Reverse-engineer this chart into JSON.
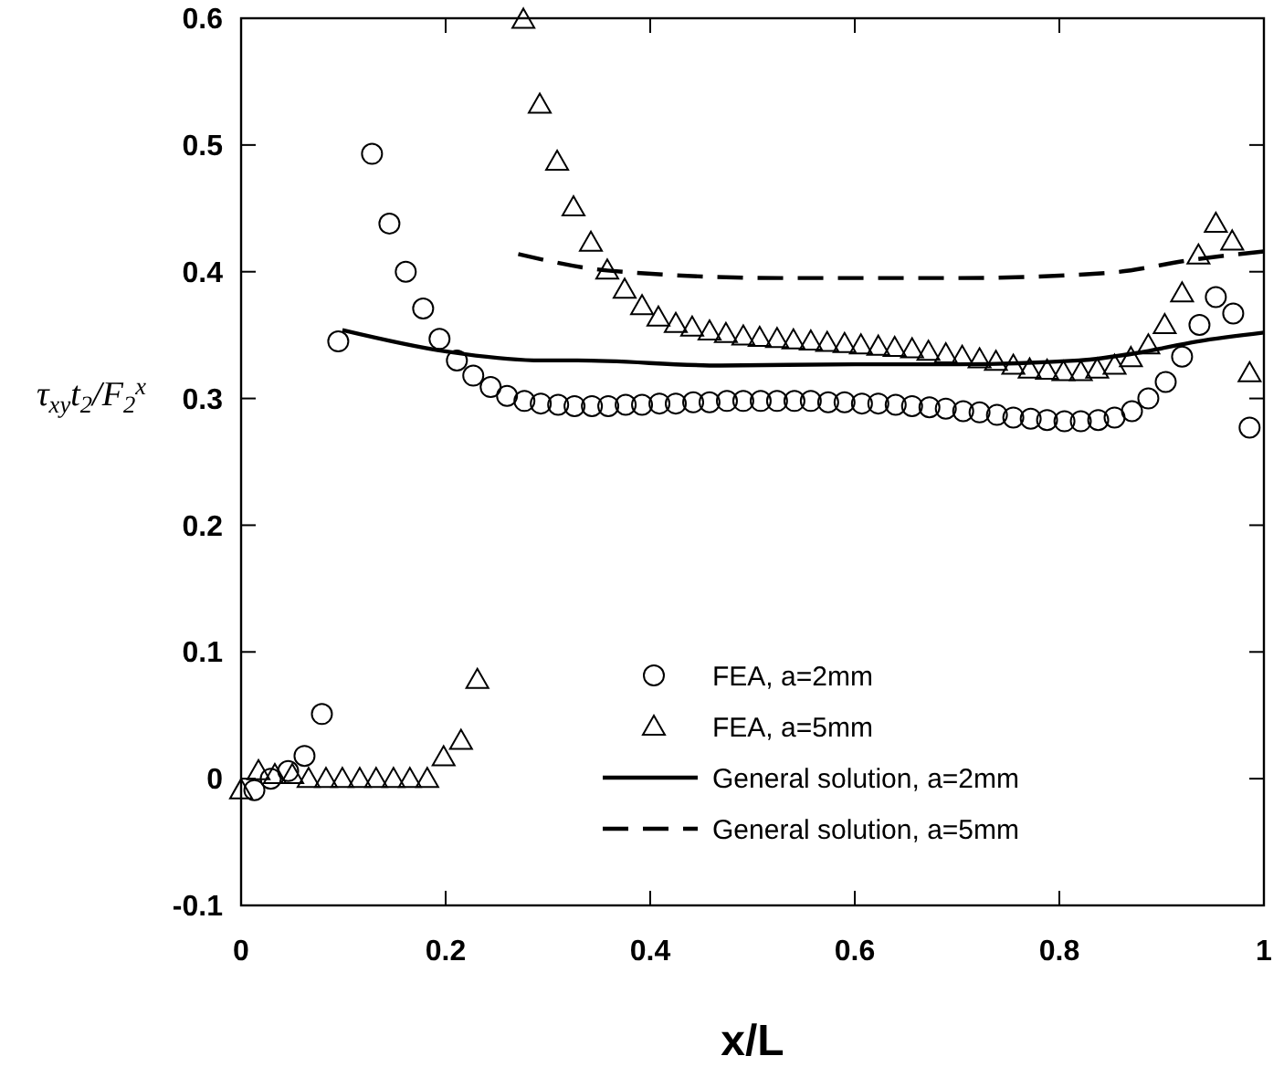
{
  "chart_data": {
    "type": "scatter",
    "xlabel": "x/L",
    "ylabel": "τ$_{xy}$t$_{2}$/F$_{2}$$^{x}$",
    "xlim": [
      0,
      1
    ],
    "xticks": [
      0,
      0.2,
      0.4,
      0.6,
      0.8,
      1
    ],
    "ylim": [
      -0.1,
      0.6
    ],
    "yticks": [
      -0.1,
      0,
      0.1,
      0.2,
      0.3,
      0.4,
      0.5,
      0.6
    ],
    "grid": false,
    "legend": "bottom right",
    "series": [
      {
        "name": "FEA, a=2mm",
        "marker": "circle",
        "color": "#000000",
        "x": [
          0.013,
          0.029,
          0.046,
          0.062,
          0.079,
          0.095,
          0.128,
          0.145,
          0.161,
          0.178,
          0.194,
          0.211,
          0.227,
          0.244,
          0.26,
          0.277,
          0.293,
          0.31,
          0.326,
          0.343,
          0.359,
          0.376,
          0.392,
          0.409,
          0.425,
          0.442,
          0.458,
          0.475,
          0.491,
          0.508,
          0.524,
          0.541,
          0.557,
          0.574,
          0.59,
          0.607,
          0.623,
          0.64,
          0.656,
          0.673,
          0.689,
          0.706,
          0.722,
          0.739,
          0.755,
          0.772,
          0.788,
          0.805,
          0.821,
          0.838,
          0.854,
          0.871,
          0.887,
          0.904,
          0.92,
          0.937,
          0.953,
          0.97,
          0.986
        ],
        "values": [
          -0.009,
          0.0,
          0.006,
          0.018,
          0.051,
          0.345,
          0.493,
          0.438,
          0.4,
          0.371,
          0.347,
          0.33,
          0.318,
          0.309,
          0.302,
          0.298,
          0.296,
          0.295,
          0.294,
          0.294,
          0.294,
          0.295,
          0.295,
          0.296,
          0.296,
          0.297,
          0.297,
          0.298,
          0.298,
          0.298,
          0.298,
          0.298,
          0.298,
          0.297,
          0.297,
          0.296,
          0.296,
          0.295,
          0.294,
          0.293,
          0.292,
          0.29,
          0.289,
          0.287,
          0.285,
          0.284,
          0.283,
          0.282,
          0.282,
          0.283,
          0.285,
          0.29,
          0.3,
          0.313,
          0.333,
          0.358,
          0.38,
          0.367,
          0.277
        ]
      },
      {
        "name": "FEA, a=5mm",
        "marker": "triangle",
        "color": "#000000",
        "x": [
          0,
          0.017,
          0.033,
          0.05,
          0.066,
          0.083,
          0.099,
          0.116,
          0.132,
          0.149,
          0.165,
          0.182,
          0.198,
          0.215,
          0.231,
          0.276,
          0.292,
          0.309,
          0.325,
          0.342,
          0.358,
          0.375,
          0.392,
          0.408,
          0.425,
          0.441,
          0.458,
          0.474,
          0.491,
          0.507,
          0.524,
          0.54,
          0.557,
          0.573,
          0.59,
          0.606,
          0.623,
          0.639,
          0.656,
          0.672,
          0.689,
          0.705,
          0.722,
          0.738,
          0.755,
          0.771,
          0.788,
          0.804,
          0.821,
          0.837,
          0.854,
          0.87,
          0.887,
          0.903,
          0.92,
          0.936,
          0.953,
          0.969,
          0.986
        ],
        "values": [
          -0.009,
          0.006,
          0.003,
          0.003,
          0.0,
          0.0,
          0.0,
          0.0,
          0.0,
          0.0,
          0.0,
          0.0,
          0.017,
          0.03,
          0.078,
          0.599,
          0.532,
          0.487,
          0.451,
          0.423,
          0.401,
          0.386,
          0.373,
          0.364,
          0.359,
          0.356,
          0.353,
          0.351,
          0.349,
          0.348,
          0.347,
          0.346,
          0.345,
          0.344,
          0.343,
          0.342,
          0.341,
          0.34,
          0.339,
          0.337,
          0.335,
          0.333,
          0.331,
          0.329,
          0.326,
          0.323,
          0.322,
          0.321,
          0.321,
          0.323,
          0.326,
          0.332,
          0.342,
          0.358,
          0.383,
          0.413,
          0.438,
          0.424,
          0.32
        ]
      },
      {
        "name": "General solution, a=2mm",
        "type": "line",
        "line_style": "solid",
        "color": "#000000",
        "x": [
          0.099,
          0.201,
          0.294,
          0.329,
          0.469,
          0.6,
          0.7,
          0.819,
          0.877,
          0.935,
          1.0
        ],
        "values": [
          0.354,
          0.337,
          0.33,
          0.33,
          0.326,
          0.327,
          0.327,
          0.33,
          0.336,
          0.345,
          0.352
        ]
      },
      {
        "name": "General solution, a=5mm",
        "type": "line",
        "line_style": "dashed",
        "color": "#000000",
        "x": [
          0.271,
          0.358,
          0.527,
          0.7,
          0.846,
          0.935,
          1.0
        ],
        "values": [
          0.414,
          0.401,
          0.395,
          0.395,
          0.399,
          0.41,
          0.416
        ]
      }
    ]
  }
}
